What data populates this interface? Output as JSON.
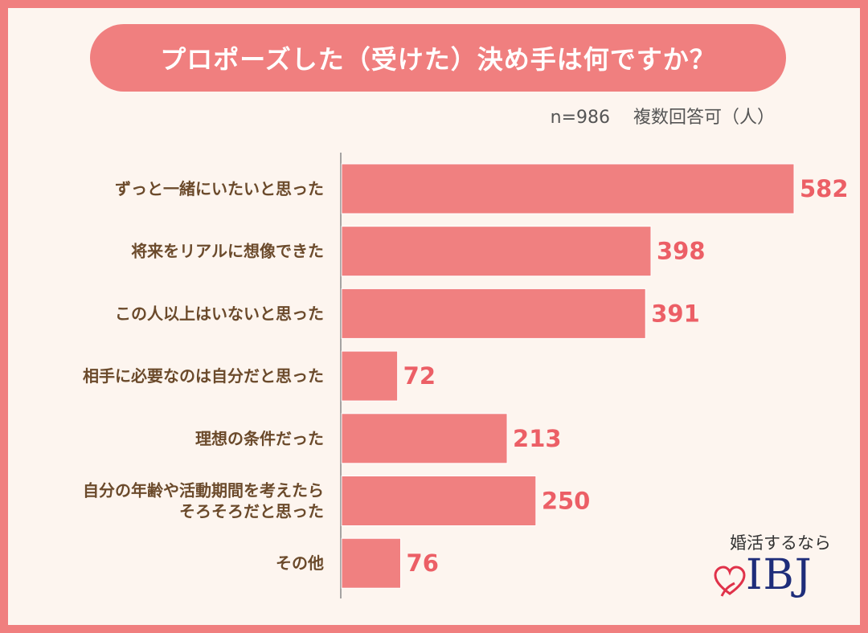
{
  "title": "プロポーズした（受けた）決め手は何ですか？",
  "subtitle": "n=986　 複数回答可（人）",
  "logo": {
    "tagline": "婚活するなら",
    "brand": "IBJ"
  },
  "colors": {
    "bar": "#f08080",
    "frame": "#f07f7f",
    "value_text": "#ec5f66",
    "label_text": "#6b4a2b"
  },
  "chart_data": {
    "type": "bar",
    "orientation": "horizontal",
    "categories": [
      [
        "ずっと一緒にいたいと思った"
      ],
      [
        "将来をリアルに想像できた"
      ],
      [
        "この人以上はいないと思った"
      ],
      [
        "相手に必要なのは自分だと思った"
      ],
      [
        "理想の条件だった"
      ],
      [
        "自分の年齢や活動期間を考えたら",
        "そろそろだと思った"
      ],
      [
        "その他"
      ]
    ],
    "values": [
      582,
      398,
      391,
      72,
      213,
      250,
      76
    ],
    "xlim": [
      0,
      582
    ],
    "grid": false,
    "legend": "none"
  }
}
